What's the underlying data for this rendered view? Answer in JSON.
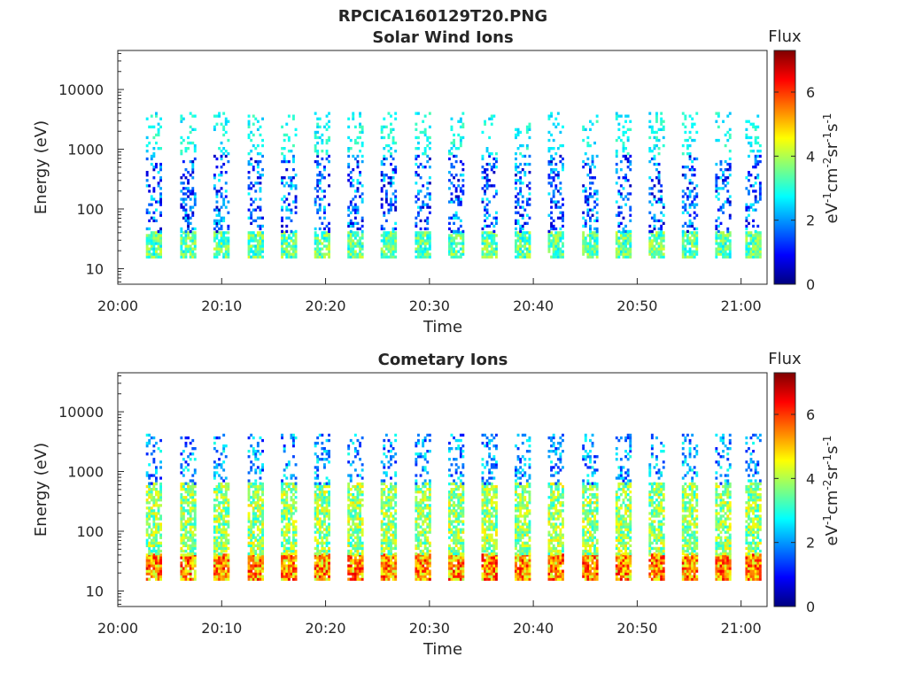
{
  "figure": {
    "title": "RPCICA160129T20.PNG"
  },
  "colormap": {
    "name": "jet",
    "stops": [
      "#00007f",
      "#0000ff",
      "#007fff",
      "#00ffff",
      "#7fff7f",
      "#ffff00",
      "#ff7f00",
      "#ff0000",
      "#7f0000"
    ]
  },
  "chart_data": [
    {
      "type": "heatmap",
      "title": "Solar Wind Ions",
      "xlabel": "Time",
      "ylabel": "Energy (eV)",
      "x_ticks": [
        "20:00",
        "20:10",
        "20:20",
        "20:30",
        "20:40",
        "20:50",
        "21:00"
      ],
      "x_tick_minutes": [
        0,
        10,
        20,
        30,
        40,
        50,
        60
      ],
      "xlim_minutes": [
        0,
        62.5
      ],
      "y_scale": "log",
      "y_ticks": [
        "10",
        "100",
        "1000",
        "10000"
      ],
      "y_tick_values": [
        10,
        100,
        1000,
        10000
      ],
      "ylim": [
        5.5,
        45000
      ],
      "colorbar": {
        "title": "Flux",
        "label": "eV-1cm-2sr-1s-1",
        "ticks": [
          "0",
          "2",
          "4",
          "6"
        ],
        "tick_values": [
          0,
          2,
          4,
          6
        ],
        "range": [
          0,
          7.3
        ]
      },
      "sweep_start_minutes": [
        3.3,
        6.6,
        9.8,
        13.1,
        16.3,
        19.5,
        22.7,
        25.9,
        29.2,
        32.4,
        35.6,
        38.8,
        42.0,
        45.3,
        48.5,
        51.7,
        54.9,
        58.1,
        61.0
      ],
      "bands": [
        {
          "name": "low",
          "emin": 15,
          "emax": 40,
          "flux_min": 2.5,
          "flux_max": 4.3,
          "density": 0.85
        },
        {
          "name": "mid",
          "emin": 40,
          "emax": 800,
          "flux_min": 0.4,
          "flux_max": 2.8,
          "density": 0.3
        },
        {
          "name": "high",
          "emin": 800,
          "emax": 4000,
          "flux_min": 2.3,
          "flux_max": 3.3,
          "density": 0.22
        }
      ]
    },
    {
      "type": "heatmap",
      "title": "Cometary Ions",
      "xlabel": "Time",
      "ylabel": "Energy (eV)",
      "x_ticks": [
        "20:00",
        "20:10",
        "20:20",
        "20:30",
        "20:40",
        "20:50",
        "21:00"
      ],
      "x_tick_minutes": [
        0,
        10,
        20,
        30,
        40,
        50,
        60
      ],
      "xlim_minutes": [
        0,
        62.5
      ],
      "y_scale": "log",
      "y_ticks": [
        "10",
        "100",
        "1000",
        "10000"
      ],
      "y_tick_values": [
        10,
        100,
        1000,
        10000
      ],
      "ylim": [
        5.5,
        45000
      ],
      "colorbar": {
        "title": "Flux",
        "label": "eV-1cm-2sr-1s-1",
        "ticks": [
          "0",
          "2",
          "4",
          "6"
        ],
        "tick_values": [
          0,
          2,
          4,
          6
        ],
        "range": [
          0,
          7.3
        ]
      },
      "sweep_start_minutes": [
        3.3,
        6.6,
        9.8,
        13.1,
        16.3,
        19.5,
        22.7,
        25.9,
        29.2,
        32.4,
        35.6,
        38.8,
        42.0,
        45.3,
        48.5,
        51.7,
        54.9,
        58.1,
        61.0
      ],
      "bands": [
        {
          "name": "low",
          "emin": 15,
          "emax": 40,
          "flux_min": 4.0,
          "flux_max": 6.6,
          "density": 0.95
        },
        {
          "name": "mid",
          "emin": 40,
          "emax": 600,
          "flux_min": 2.8,
          "flux_max": 4.8,
          "density": 0.75
        },
        {
          "name": "high",
          "emin": 600,
          "emax": 4000,
          "flux_min": 1.0,
          "flux_max": 3.0,
          "density": 0.25
        }
      ]
    }
  ]
}
